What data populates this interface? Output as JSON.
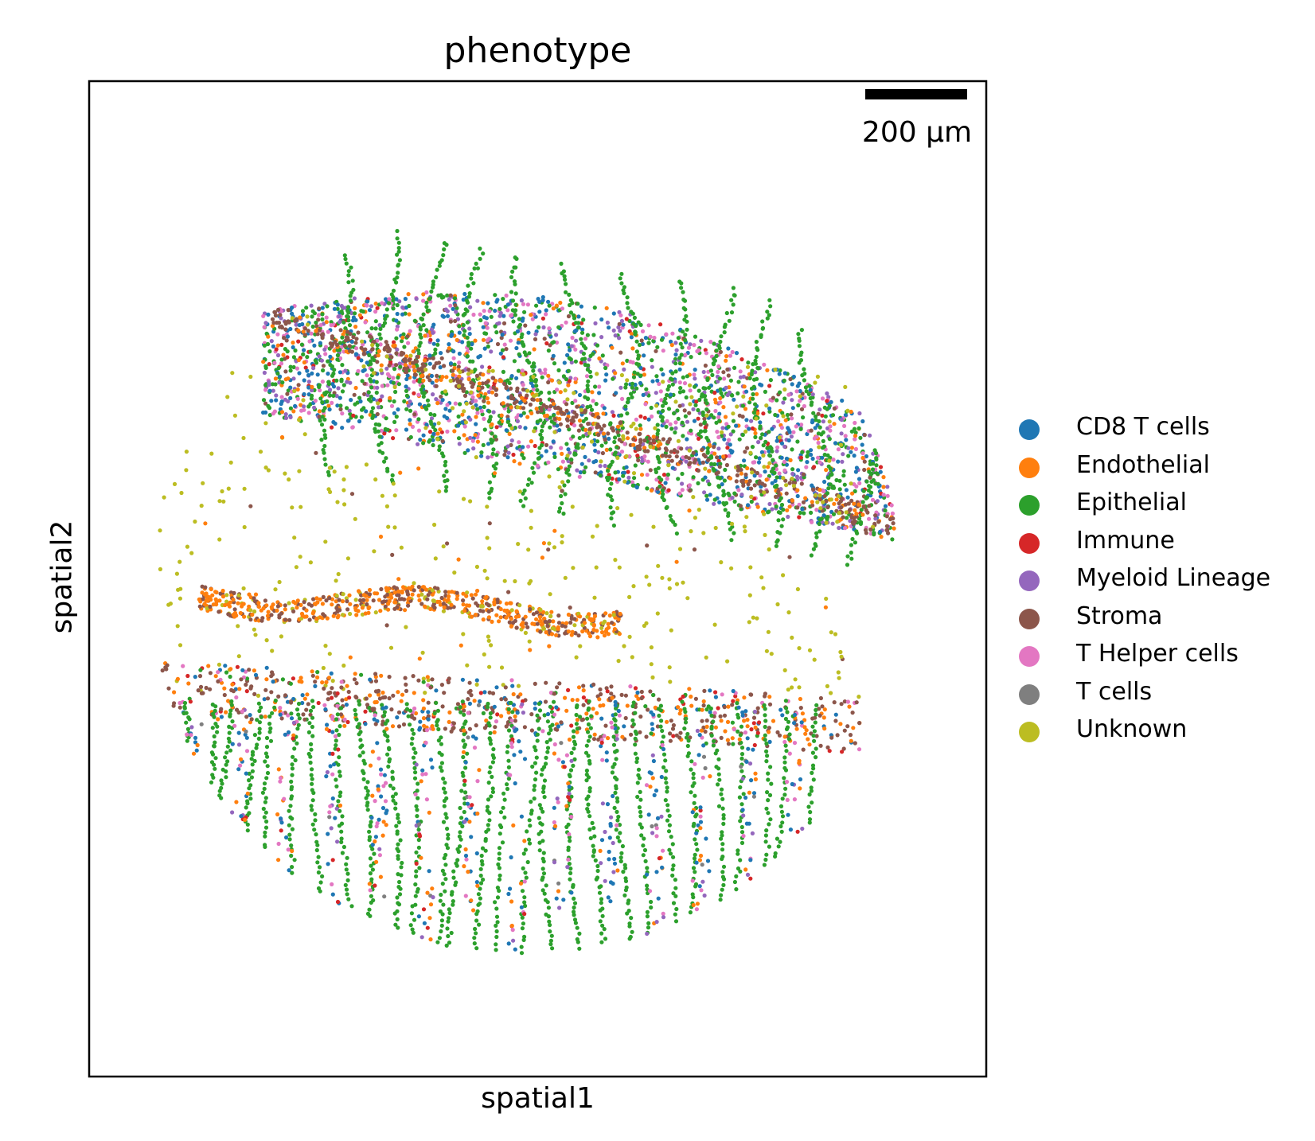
{
  "chart_data": {
    "type": "scatter",
    "title": "phenotype",
    "xlabel": "spatial1",
    "ylabel": "spatial2",
    "scalebar_label": "200 µm",
    "legend_position": "right",
    "grid": false,
    "categories": [
      {
        "name": "CD8 T cells",
        "color": "#1f77b4"
      },
      {
        "name": "Endothelial",
        "color": "#ff7f0e"
      },
      {
        "name": "Epithelial",
        "color": "#2ca02c"
      },
      {
        "name": "Immune",
        "color": "#d62728"
      },
      {
        "name": "Myeloid Lineage",
        "color": "#9467bd"
      },
      {
        "name": "Stroma",
        "color": "#8c564b"
      },
      {
        "name": "T Helper cells",
        "color": "#e377c2"
      },
      {
        "name": "T cells",
        "color": "#7f7f7f"
      },
      {
        "name": "Unknown",
        "color": "#bcbd22"
      }
    ]
  }
}
